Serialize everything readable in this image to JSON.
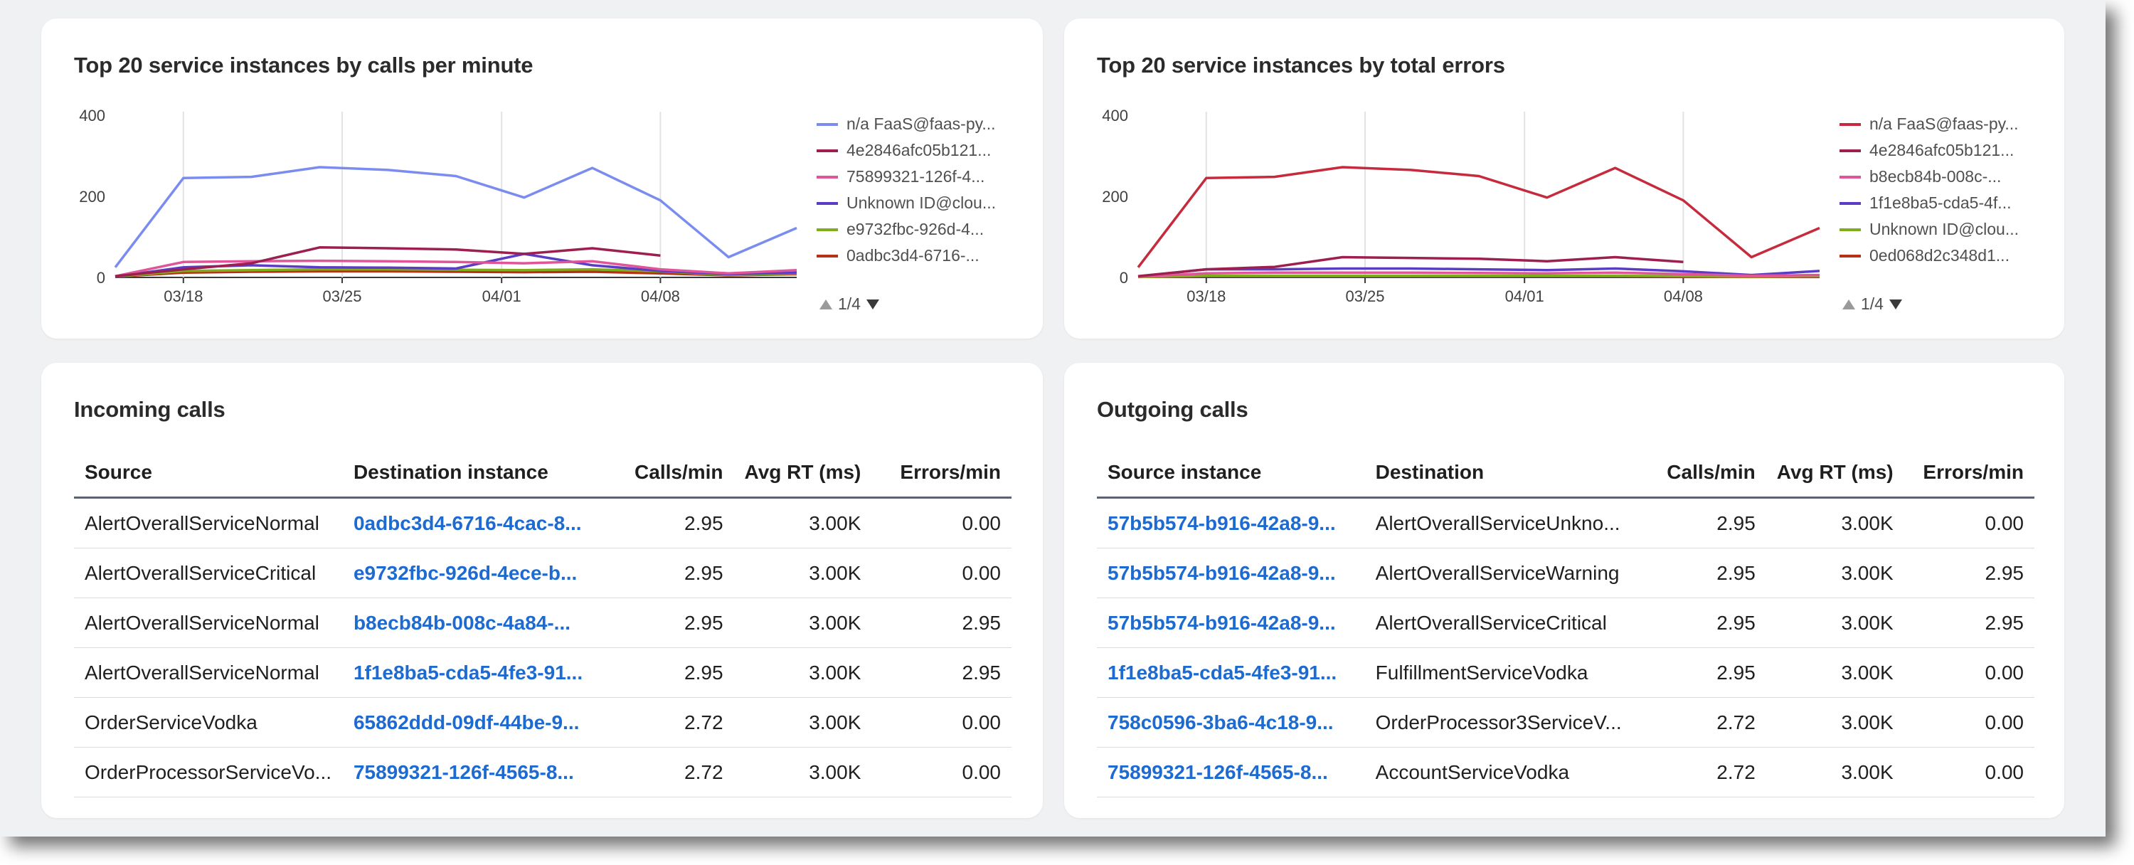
{
  "charts": {
    "calls": {
      "title": "Top 20 service instances by calls per minute",
      "legend": [
        {
          "label": "n/a FaaS@faas-py...",
          "color": "#7b8cf0"
        },
        {
          "label": "4e2846afc05b121...",
          "color": "#9c1f4f"
        },
        {
          "label": "75899321-126f-4...",
          "color": "#e0559a"
        },
        {
          "label": "Unknown ID@clou...",
          "color": "#5b3cc4"
        },
        {
          "label": "e9732fbc-926d-4...",
          "color": "#7fae1c"
        },
        {
          "label": "0adbc3d4-6716-...",
          "color": "#b72f14"
        }
      ],
      "pager": "1/4"
    },
    "errors": {
      "title": "Top 20 service instances by total errors",
      "legend": [
        {
          "label": "n/a FaaS@faas-py...",
          "color": "#c52b3c"
        },
        {
          "label": "4e2846afc05b121...",
          "color": "#9c1f4f"
        },
        {
          "label": "b8ecb84b-008c-...",
          "color": "#e0559a"
        },
        {
          "label": "1f1e8ba5-cda5-4f...",
          "color": "#5b3cc4"
        },
        {
          "label": "Unknown ID@clou...",
          "color": "#7fae1c"
        },
        {
          "label": "0ed068d2c348d1...",
          "color": "#b72f14"
        }
      ],
      "pager": "1/4"
    }
  },
  "chart_data": [
    {
      "type": "line",
      "title": "Top 20 service instances by calls per minute",
      "xticks": [
        "03/18",
        "03/25",
        "04/01",
        "04/08"
      ],
      "yticks": [
        0,
        200,
        400
      ],
      "ylim": [
        0,
        400
      ],
      "x": [
        "03/15",
        "03/18",
        "03/21",
        "03/24",
        "03/27",
        "03/30",
        "04/02",
        "04/05",
        "04/08",
        "04/11",
        "04/14"
      ],
      "series": [
        {
          "name": "n/a FaaS@faas-py...",
          "color": "#7b8cf0",
          "values": [
            25,
            245,
            248,
            272,
            265,
            250,
            197,
            270,
            190,
            50,
            122
          ]
        },
        {
          "name": "4e2846afc05b121...",
          "color": "#9c1f4f",
          "values": [
            3,
            20,
            35,
            74,
            72,
            69,
            58,
            72,
            54,
            null,
            null
          ]
        },
        {
          "name": "75899321-126f-4...",
          "color": "#e0559a",
          "values": [
            3,
            38,
            40,
            41,
            40,
            38,
            35,
            40,
            20,
            10,
            18
          ]
        },
        {
          "name": "Unknown ID@clou...",
          "color": "#5b3cc4",
          "values": [
            2,
            25,
            30,
            25,
            24,
            22,
            58,
            30,
            16,
            8,
            12
          ]
        },
        {
          "name": "e9732fbc-926d-4...",
          "color": "#7fae1c",
          "values": [
            2,
            16,
            18,
            20,
            20,
            19,
            18,
            20,
            15,
            6,
            10
          ]
        },
        {
          "name": "0adbc3d4-6716-...",
          "color": "#b72f14",
          "values": [
            2,
            12,
            14,
            15,
            15,
            14,
            13,
            14,
            10,
            5,
            8
          ]
        }
      ]
    },
    {
      "type": "line",
      "title": "Top 20 service instances by total errors",
      "xticks": [
        "03/18",
        "03/25",
        "04/01",
        "04/08"
      ],
      "yticks": [
        0,
        200,
        400
      ],
      "ylim": [
        0,
        400
      ],
      "x": [
        "03/15",
        "03/18",
        "03/21",
        "03/24",
        "03/27",
        "03/30",
        "04/02",
        "04/05",
        "04/08",
        "04/11",
        "04/14"
      ],
      "series": [
        {
          "name": "n/a FaaS@faas-py...",
          "color": "#c52b3c",
          "values": [
            25,
            245,
            248,
            272,
            265,
            250,
            197,
            270,
            190,
            50,
            122
          ]
        },
        {
          "name": "4e2846afc05b121...",
          "color": "#9c1f4f",
          "values": [
            3,
            20,
            26,
            50,
            48,
            46,
            40,
            50,
            38,
            null,
            null
          ]
        },
        {
          "name": "b8ecb84b-008c-...",
          "color": "#e0559a",
          "values": [
            2,
            10,
            12,
            12,
            12,
            11,
            10,
            12,
            8,
            4,
            6
          ]
        },
        {
          "name": "1f1e8ba5-cda5-4f...",
          "color": "#5b3cc4",
          "values": [
            2,
            20,
            20,
            22,
            22,
            20,
            18,
            22,
            15,
            6,
            16
          ]
        },
        {
          "name": "Unknown ID@clou...",
          "color": "#7fae1c",
          "values": [
            1,
            4,
            4,
            4,
            4,
            4,
            4,
            4,
            3,
            2,
            3
          ]
        },
        {
          "name": "0ed068d2c348d1...",
          "color": "#b72f14",
          "values": [
            1,
            3,
            3,
            3,
            3,
            3,
            3,
            3,
            2,
            1,
            2
          ]
        }
      ]
    }
  ],
  "incoming": {
    "title": "Incoming calls",
    "columns": [
      "Source",
      "Destination instance",
      "Calls/min",
      "Avg RT (ms)",
      "Errors/min"
    ],
    "rows": [
      [
        "AlertOverallServiceNormal",
        "0adbc3d4-6716-4cac-8...",
        "2.95",
        "3.00K",
        "0.00"
      ],
      [
        "AlertOverallServiceCritical",
        "e9732fbc-926d-4ece-b...",
        "2.95",
        "3.00K",
        "0.00"
      ],
      [
        "AlertOverallServiceNormal",
        "b8ecb84b-008c-4a84-...",
        "2.95",
        "3.00K",
        "2.95"
      ],
      [
        "AlertOverallServiceNormal",
        "1f1e8ba5-cda5-4fe3-91...",
        "2.95",
        "3.00K",
        "2.95"
      ],
      [
        "OrderServiceVodka",
        "65862ddd-09df-44be-9...",
        "2.72",
        "3.00K",
        "0.00"
      ],
      [
        "OrderProcessorServiceVo...",
        "75899321-126f-4565-8...",
        "2.72",
        "3.00K",
        "0.00"
      ]
    ]
  },
  "outgoing": {
    "title": "Outgoing calls",
    "columns": [
      "Source instance",
      "Destination",
      "Calls/min",
      "Avg RT (ms)",
      "Errors/min"
    ],
    "rows": [
      [
        "57b5b574-b916-42a8-9...",
        "AlertOverallServiceUnkno...",
        "2.95",
        "3.00K",
        "0.00"
      ],
      [
        "57b5b574-b916-42a8-9...",
        "AlertOverallServiceWarning",
        "2.95",
        "3.00K",
        "2.95"
      ],
      [
        "57b5b574-b916-42a8-9...",
        "AlertOverallServiceCritical",
        "2.95",
        "3.00K",
        "2.95"
      ],
      [
        "1f1e8ba5-cda5-4fe3-91...",
        "FulfillmentServiceVodka",
        "2.95",
        "3.00K",
        "0.00"
      ],
      [
        "758c0596-3ba6-4c18-9...",
        "OrderProcessor3ServiceV...",
        "2.72",
        "3.00K",
        "0.00"
      ],
      [
        "75899321-126f-4565-8...",
        "AccountServiceVodka",
        "2.72",
        "3.00K",
        "0.00"
      ]
    ]
  }
}
